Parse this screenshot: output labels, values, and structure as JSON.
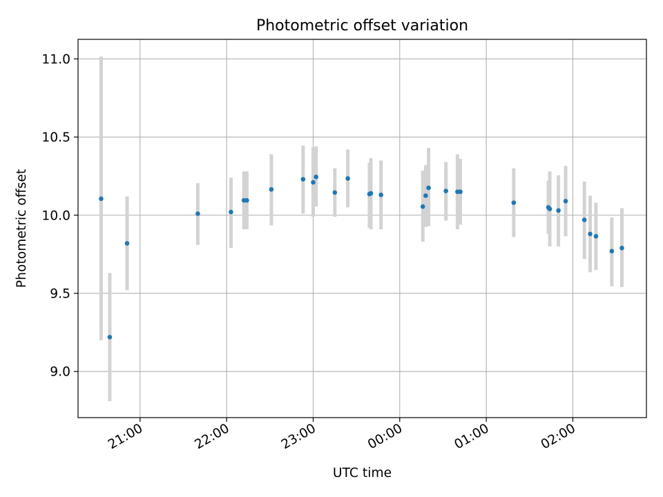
{
  "chart_data": {
    "type": "scatter",
    "title": "Photometric offset variation",
    "xlabel": "UTC time",
    "ylabel": "Photometric offset",
    "x_unit": "UTC",
    "xlim": [
      "20:17",
      "26:51"
    ],
    "ylim": [
      8.705,
      11.125
    ],
    "grid": true,
    "legend": "none",
    "xticks": [
      {
        "t": "21:00",
        "label": "21:00"
      },
      {
        "t": "22:00",
        "label": "22:00"
      },
      {
        "t": "23:00",
        "label": "23:00"
      },
      {
        "t": "24:00",
        "label": "00:00"
      },
      {
        "t": "25:00",
        "label": "01:00"
      },
      {
        "t": "26:00",
        "label": "02:00"
      }
    ],
    "yticks": [
      {
        "v": 9.0,
        "label": "9.0"
      },
      {
        "v": 9.5,
        "label": "9.5"
      },
      {
        "v": 10.0,
        "label": "10.0"
      },
      {
        "v": 10.5,
        "label": "10.5"
      },
      {
        "v": 11.0,
        "label": "11.0"
      }
    ],
    "colors": {
      "point": "#1f77b4",
      "errorbar": "#d3d3d3",
      "grid": "#b0b0b0",
      "axes": "#000000"
    },
    "points": [
      {
        "t": "20:33",
        "y": 10.105,
        "lo": 9.2,
        "hi": 11.015
      },
      {
        "t": "20:39",
        "y": 9.22,
        "lo": 8.81,
        "hi": 9.63
      },
      {
        "t": "20:51",
        "y": 9.82,
        "lo": 9.52,
        "hi": 10.12
      },
      {
        "t": "21:40",
        "y": 10.01,
        "lo": 9.81,
        "hi": 10.205
      },
      {
        "t": "22:03",
        "y": 10.02,
        "lo": 9.79,
        "hi": 10.24
      },
      {
        "t": "22:12",
        "y": 10.095,
        "lo": 9.91,
        "hi": 10.28
      },
      {
        "t": "22:14",
        "y": 10.095,
        "lo": 9.91,
        "hi": 10.28
      },
      {
        "t": "22:31",
        "y": 10.165,
        "lo": 9.935,
        "hi": 10.39
      },
      {
        "t": "22:53",
        "y": 10.23,
        "lo": 10.01,
        "hi": 10.445
      },
      {
        "t": "23:00",
        "y": 10.21,
        "lo": 9.99,
        "hi": 10.435
      },
      {
        "t": "23:02",
        "y": 10.245,
        "lo": 10.055,
        "hi": 10.44
      },
      {
        "t": "23:15",
        "y": 10.145,
        "lo": 9.99,
        "hi": 10.3
      },
      {
        "t": "23:24",
        "y": 10.235,
        "lo": 10.05,
        "hi": 10.42
      },
      {
        "t": "23:39",
        "y": 10.135,
        "lo": 9.92,
        "hi": 10.335
      },
      {
        "t": "23:40",
        "y": 10.14,
        "lo": 9.91,
        "hi": 10.365
      },
      {
        "t": "23:47",
        "y": 10.13,
        "lo": 9.91,
        "hi": 10.35
      },
      {
        "t": "24:16",
        "y": 10.055,
        "lo": 9.83,
        "hi": 10.285
      },
      {
        "t": "24:18",
        "y": 10.125,
        "lo": 9.925,
        "hi": 10.32
      },
      {
        "t": "24:20",
        "y": 10.175,
        "lo": 9.93,
        "hi": 10.43
      },
      {
        "t": "24:32",
        "y": 10.155,
        "lo": 9.965,
        "hi": 10.34
      },
      {
        "t": "24:40",
        "y": 10.15,
        "lo": 9.91,
        "hi": 10.39
      },
      {
        "t": "24:42",
        "y": 10.15,
        "lo": 9.94,
        "hi": 10.36
      },
      {
        "t": "25:19",
        "y": 10.08,
        "lo": 9.86,
        "hi": 10.3
      },
      {
        "t": "25:43",
        "y": 10.05,
        "lo": 9.88,
        "hi": 10.22
      },
      {
        "t": "25:44",
        "y": 10.04,
        "lo": 9.8,
        "hi": 10.28
      },
      {
        "t": "25:50",
        "y": 10.03,
        "lo": 9.8,
        "hi": 10.255
      },
      {
        "t": "25:55",
        "y": 10.09,
        "lo": 9.865,
        "hi": 10.315
      },
      {
        "t": "26:08",
        "y": 9.97,
        "lo": 9.72,
        "hi": 10.215
      },
      {
        "t": "26:12",
        "y": 9.88,
        "lo": 9.635,
        "hi": 10.125
      },
      {
        "t": "26:16",
        "y": 9.865,
        "lo": 9.65,
        "hi": 10.08
      },
      {
        "t": "26:27",
        "y": 9.77,
        "lo": 9.545,
        "hi": 9.985
      },
      {
        "t": "26:34",
        "y": 9.79,
        "lo": 9.54,
        "hi": 10.045
      }
    ]
  }
}
